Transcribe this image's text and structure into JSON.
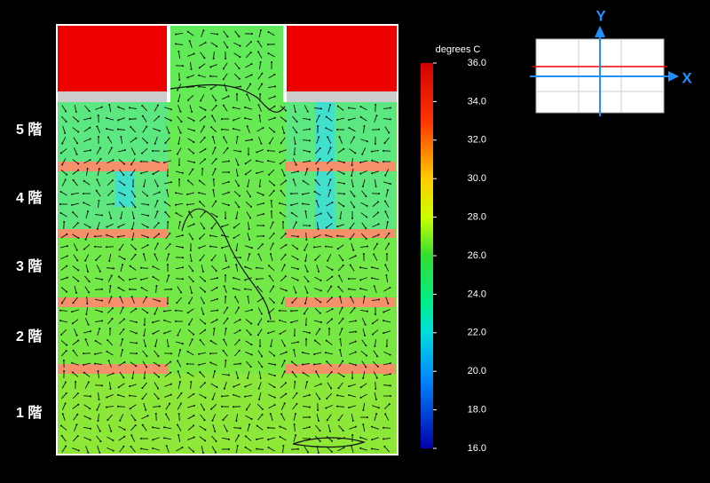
{
  "floors": [
    "5 階",
    "4 階",
    "3 階",
    "2 階",
    "1 階"
  ],
  "colorbar": {
    "title": "degrees C",
    "range": [
      16,
      36
    ],
    "ticks": [
      {
        "value": 36,
        "label": "36.0"
      },
      {
        "value": 34,
        "label": "34.0"
      },
      {
        "value": 32,
        "label": "32.0"
      },
      {
        "value": 30,
        "label": "30.0"
      },
      {
        "value": 28,
        "label": "28.0"
      },
      {
        "value": 26,
        "label": "26.0"
      },
      {
        "value": 24,
        "label": "24.0"
      },
      {
        "value": 22,
        "label": "22.0"
      },
      {
        "value": 20,
        "label": "20.0"
      },
      {
        "value": 18,
        "label": "18.0"
      },
      {
        "value": 16,
        "label": "16.0"
      }
    ]
  },
  "inset": {
    "y_label": "Y",
    "x_label": "X"
  }
}
